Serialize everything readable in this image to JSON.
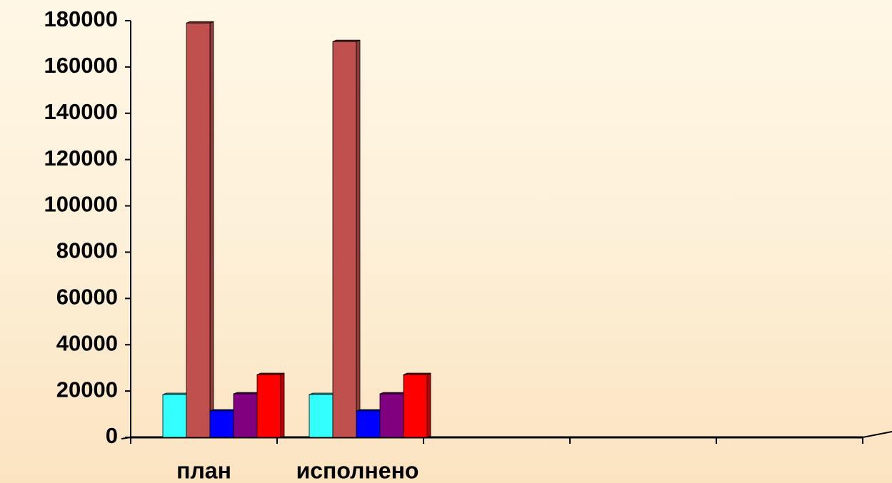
{
  "chart_data": {
    "type": "bar",
    "categories": [
      "план",
      "исполнено",
      null,
      null,
      null
    ],
    "series": [
      {
        "color": "#33ffff",
        "values": [
          18500,
          18500,
          null,
          null,
          null
        ]
      },
      {
        "color": "#c0504d",
        "values": [
          179000,
          171000,
          null,
          null,
          null
        ]
      },
      {
        "color": "#0000ff",
        "values": [
          11400,
          11400,
          null,
          null,
          null
        ]
      },
      {
        "color": "#800080",
        "values": [
          18800,
          18800,
          null,
          null,
          null
        ]
      },
      {
        "color": "#ff0000",
        "values": [
          27100,
          27100,
          null,
          null,
          null
        ]
      }
    ],
    "ylim": [
      0,
      180000
    ],
    "yticks": [
      0,
      20000,
      40000,
      60000,
      80000,
      100000,
      120000,
      140000,
      160000,
      180000
    ],
    "grid": false
  }
}
